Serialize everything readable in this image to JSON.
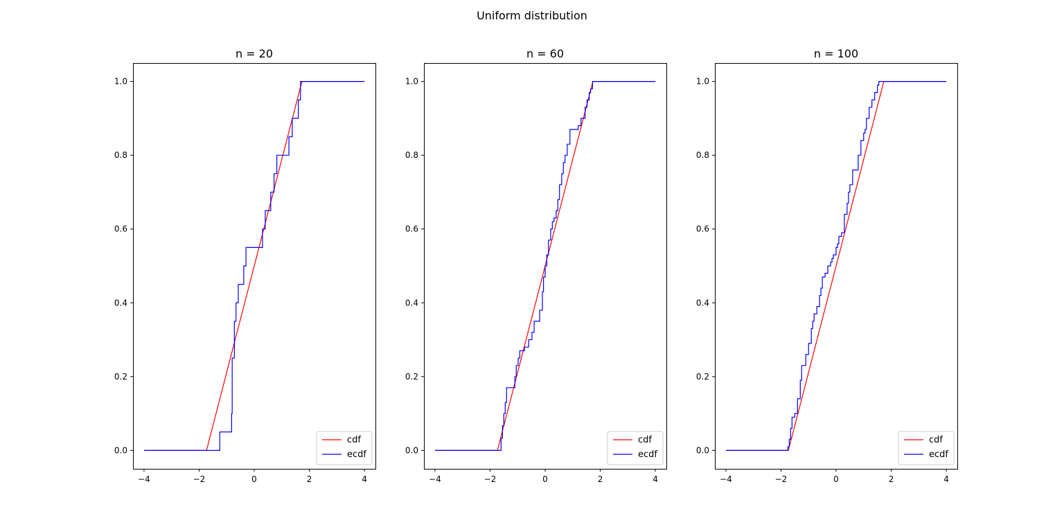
{
  "figure": {
    "suptitle": "Uniform distribution"
  },
  "chart_data": [
    {
      "type": "line",
      "title": "n = 20",
      "xlabel": "",
      "ylabel": "",
      "xlim": [
        -4.4,
        4.4
      ],
      "ylim": [
        -0.05,
        1.05
      ],
      "xticks": [
        -4,
        -2,
        0,
        2,
        4
      ],
      "yticks": [
        0.0,
        0.2,
        0.4,
        0.6,
        0.8,
        1.0
      ],
      "xtick_labels": [
        "−4",
        "−2",
        "0",
        "2",
        "4"
      ],
      "ytick_labels": [
        "0.0",
        "0.2",
        "0.4",
        "0.6",
        "0.8",
        "1.0"
      ],
      "grid": false,
      "legend": {
        "placement": "lower-right"
      },
      "series": [
        {
          "name": "cdf",
          "color": "#ff0000",
          "kind": "line",
          "x": [
            -4,
            -1.732,
            1.732,
            4
          ],
          "y": [
            0,
            0,
            1,
            1
          ]
        },
        {
          "name": "ecdf",
          "color": "#0000ff",
          "kind": "step",
          "x": [
            -4,
            -1.25,
            -0.82,
            -0.8,
            -0.72,
            -0.66,
            -0.58,
            -0.38,
            -0.3,
            -0.2,
            -0.08,
            0.3,
            0.4,
            0.6,
            0.72,
            0.82,
            1.26,
            1.38,
            1.6,
            1.68,
            1.74,
            4
          ],
          "y": [
            0,
            0.05,
            0.1,
            0.25,
            0.35,
            0.4,
            0.45,
            0.5,
            0.55,
            0.55,
            0.55,
            0.6,
            0.65,
            0.7,
            0.75,
            0.8,
            0.85,
            0.9,
            0.95,
            1.0,
            1.0,
            1.0
          ]
        }
      ]
    },
    {
      "type": "line",
      "title": "n = 60",
      "xlabel": "",
      "ylabel": "",
      "xlim": [
        -4.4,
        4.4
      ],
      "ylim": [
        -0.05,
        1.05
      ],
      "xticks": [
        -4,
        -2,
        0,
        2,
        4
      ],
      "yticks": [
        0.0,
        0.2,
        0.4,
        0.6,
        0.8,
        1.0
      ],
      "xtick_labels": [
        "−4",
        "−2",
        "0",
        "2",
        "4"
      ],
      "ytick_labels": [
        "0.0",
        "0.2",
        "0.4",
        "0.6",
        "0.8",
        "1.0"
      ],
      "grid": false,
      "legend": {
        "placement": "lower-right"
      },
      "series": [
        {
          "name": "cdf",
          "color": "#ff0000",
          "kind": "line",
          "x": [
            -4,
            -1.732,
            1.732,
            4
          ],
          "y": [
            0,
            0,
            1,
            1
          ]
        },
        {
          "name": "ecdf",
          "color": "#0000ff",
          "kind": "step",
          "x": [
            -4,
            -1.6,
            -1.55,
            -1.5,
            -1.45,
            -1.4,
            -1.3,
            -1.1,
            -1.05,
            -0.98,
            -0.92,
            -0.85,
            -0.75,
            -0.6,
            -0.48,
            -0.4,
            -0.2,
            -0.1,
            -0.06,
            0.0,
            0.06,
            0.12,
            0.2,
            0.26,
            0.32,
            0.4,
            0.46,
            0.52,
            0.6,
            0.66,
            0.72,
            0.8,
            0.9,
            0.96,
            1.2,
            1.3,
            1.45,
            1.52,
            1.6,
            1.65,
            1.72,
            4
          ],
          "y": [
            0,
            0.033,
            0.067,
            0.1,
            0.13,
            0.17,
            0.17,
            0.2,
            0.23,
            0.25,
            0.27,
            0.27,
            0.28,
            0.3,
            0.32,
            0.35,
            0.38,
            0.43,
            0.47,
            0.5,
            0.53,
            0.57,
            0.6,
            0.62,
            0.63,
            0.65,
            0.68,
            0.72,
            0.75,
            0.78,
            0.8,
            0.83,
            0.87,
            0.87,
            0.88,
            0.9,
            0.93,
            0.95,
            0.97,
            0.98,
            1.0,
            1.0
          ]
        }
      ]
    },
    {
      "type": "line",
      "title": "n = 100",
      "xlabel": "",
      "ylabel": "",
      "xlim": [
        -4.4,
        4.4
      ],
      "ylim": [
        -0.05,
        1.05
      ],
      "xticks": [
        -4,
        -2,
        0,
        2,
        4
      ],
      "yticks": [
        0.0,
        0.2,
        0.4,
        0.6,
        0.8,
        1.0
      ],
      "xtick_labels": [
        "−4",
        "−2",
        "0",
        "2",
        "4"
      ],
      "ytick_labels": [
        "0.0",
        "0.2",
        "0.4",
        "0.6",
        "0.8",
        "1.0"
      ],
      "grid": false,
      "legend": {
        "placement": "lower-right"
      },
      "series": [
        {
          "name": "cdf",
          "color": "#ff0000",
          "kind": "line",
          "x": [
            -4,
            -1.732,
            1.732,
            4
          ],
          "y": [
            0,
            0,
            1,
            1
          ]
        },
        {
          "name": "ecdf",
          "color": "#0000ff",
          "kind": "step",
          "x": [
            -4,
            -1.75,
            -1.7,
            -1.65,
            -1.6,
            -1.55,
            -1.5,
            -1.4,
            -1.3,
            -1.25,
            -1.2,
            -1.1,
            -1.0,
            -0.9,
            -0.85,
            -0.8,
            -0.7,
            -0.6,
            -0.55,
            -0.5,
            -0.4,
            -0.3,
            -0.2,
            -0.15,
            -0.1,
            0.0,
            0.05,
            0.1,
            0.2,
            0.3,
            0.4,
            0.45,
            0.5,
            0.6,
            0.7,
            0.8,
            0.9,
            1.0,
            1.05,
            1.1,
            1.2,
            1.3,
            1.4,
            1.5,
            1.55,
            1.62,
            4
          ],
          "y": [
            0,
            0.01,
            0.03,
            0.06,
            0.09,
            0.09,
            0.1,
            0.14,
            0.19,
            0.23,
            0.23,
            0.26,
            0.29,
            0.33,
            0.35,
            0.37,
            0.39,
            0.42,
            0.44,
            0.47,
            0.48,
            0.5,
            0.51,
            0.52,
            0.53,
            0.55,
            0.56,
            0.58,
            0.59,
            0.64,
            0.67,
            0.7,
            0.72,
            0.76,
            0.76,
            0.8,
            0.84,
            0.86,
            0.87,
            0.9,
            0.93,
            0.95,
            0.97,
            0.99,
            1.0,
            1.0,
            1.0
          ]
        }
      ]
    }
  ]
}
